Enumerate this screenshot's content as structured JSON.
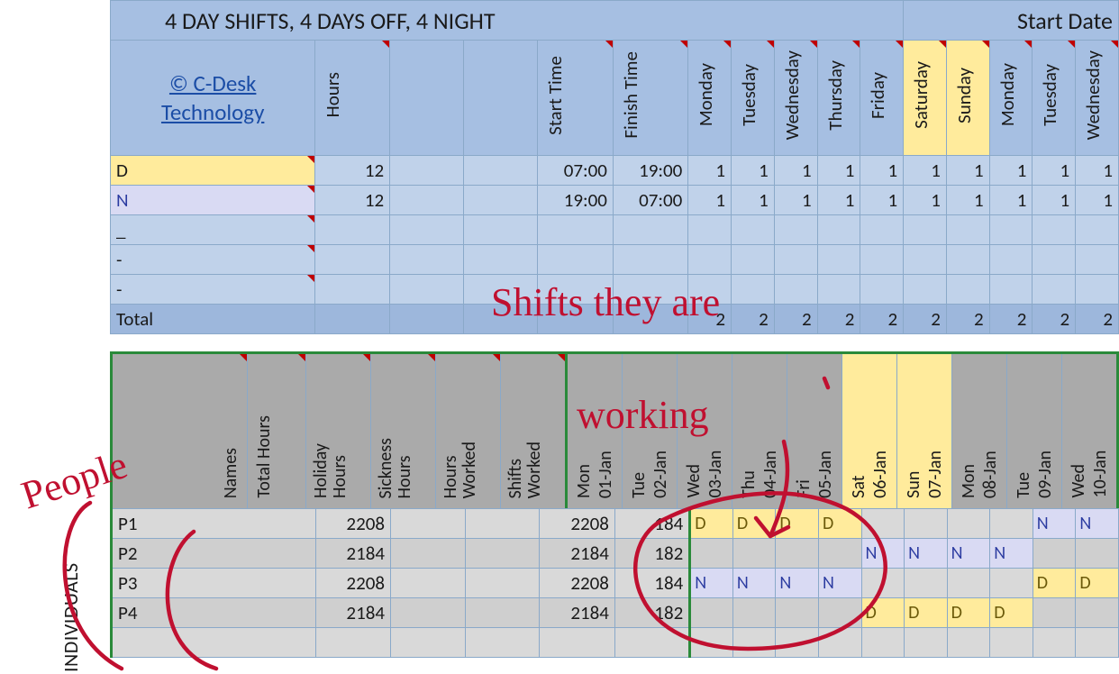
{
  "title": "4 DAY SHIFTS, 4 DAYS OFF, 4 NIGHT",
  "start_date_label": "Start Date",
  "brand_line1": "© C-Desk",
  "brand_line2": "Technology",
  "cols": {
    "hours": "Hours",
    "start_time": "Start Time",
    "finish_time": "Finish Time"
  },
  "days1": [
    "Monday",
    "Tuesday",
    "Wednesday",
    "Thursday",
    "Friday",
    "Saturday",
    "Sunday",
    "Monday",
    "Tuesday",
    "Wednesday"
  ],
  "weekend_idx": [
    5,
    6
  ],
  "shift_rows": [
    {
      "code": "D",
      "hours": 12,
      "start": "07:00",
      "finish": "19:00",
      "counts": [
        1,
        1,
        1,
        1,
        1,
        1,
        1,
        1,
        1,
        1
      ],
      "class": "drow"
    },
    {
      "code": "N",
      "hours": 12,
      "start": "19:00",
      "finish": "07:00",
      "counts": [
        1,
        1,
        1,
        1,
        1,
        1,
        1,
        1,
        1,
        1
      ],
      "class": "nrow"
    },
    {
      "code": "_"
    },
    {
      "code": "-"
    },
    {
      "code": "-"
    }
  ],
  "total_label": "Total",
  "totals": [
    2,
    2,
    2,
    2,
    2,
    2,
    2,
    2,
    2,
    2
  ],
  "green_cols": {
    "names": "Names",
    "total_hours": "Total Hours",
    "holiday_hours": "Holiday Hours",
    "sickness_hours": "Sickness Hours",
    "hours_worked": "Hours Worked",
    "shifts_worked": "Shifts Worked"
  },
  "days2_top": [
    "Mon",
    "Tue",
    "Wed",
    "Thu",
    "Fri",
    "Sat",
    "Sun",
    "Mon",
    "Tue",
    "Wed"
  ],
  "days2_bot": [
    "01-Jan",
    "02-Jan",
    "03-Jan",
    "04-Jan",
    "05-Jan",
    "06-Jan",
    "07-Jan",
    "08-Jan",
    "09-Jan",
    "10-Jan"
  ],
  "people": [
    {
      "name": "P1",
      "total": 2208,
      "worked": 2208,
      "shifts": 184,
      "pattern": [
        "D",
        "D",
        "D",
        "D",
        "",
        "",
        "",
        "",
        "N",
        "N"
      ]
    },
    {
      "name": "P2",
      "total": 2184,
      "worked": 2184,
      "shifts": 182,
      "pattern": [
        "",
        "",
        "",
        "",
        "N",
        "N",
        "N",
        "N",
        "",
        ""
      ]
    },
    {
      "name": "P3",
      "total": 2208,
      "worked": 2208,
      "shifts": 184,
      "pattern": [
        "N",
        "N",
        "N",
        "N",
        "",
        "",
        "",
        "",
        "D",
        "D"
      ]
    },
    {
      "name": "P4",
      "total": 2184,
      "worked": 2184,
      "shifts": 182,
      "pattern": [
        "",
        "",
        "",
        "",
        "D",
        "D",
        "D",
        "D",
        "",
        ""
      ]
    }
  ],
  "individuals_label": "INDIVIDUALS",
  "anno": {
    "people": "People",
    "shifts": "Shifts they are",
    "working": "working"
  }
}
